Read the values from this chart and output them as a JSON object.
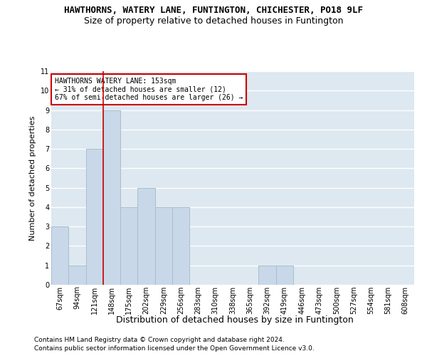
{
  "title1": "HAWTHORNS, WATERY LANE, FUNTINGTON, CHICHESTER, PO18 9LF",
  "title2": "Size of property relative to detached houses in Funtington",
  "xlabel": "Distribution of detached houses by size in Funtington",
  "ylabel": "Number of detached properties",
  "categories": [
    "67sqm",
    "94sqm",
    "121sqm",
    "148sqm",
    "175sqm",
    "202sqm",
    "229sqm",
    "256sqm",
    "283sqm",
    "310sqm",
    "338sqm",
    "365sqm",
    "392sqm",
    "419sqm",
    "446sqm",
    "473sqm",
    "500sqm",
    "527sqm",
    "554sqm",
    "581sqm",
    "608sqm"
  ],
  "values": [
    3,
    1,
    7,
    9,
    4,
    5,
    4,
    4,
    0,
    0,
    0,
    0,
    1,
    1,
    0,
    0,
    0,
    0,
    0,
    0,
    0
  ],
  "bar_color": "#c8d8e8",
  "bar_edgecolor": "#aabccc",
  "reference_line_index": 3,
  "reference_line_color": "#cc0000",
  "ylim": [
    0,
    11
  ],
  "yticks": [
    0,
    1,
    2,
    3,
    4,
    5,
    6,
    7,
    8,
    9,
    10,
    11
  ],
  "annotation_text": "HAWTHORNS WATERY LANE: 153sqm\n← 31% of detached houses are smaller (12)\n67% of semi-detached houses are larger (26) →",
  "annotation_box_color": "#ffffff",
  "annotation_box_edgecolor": "#cc0000",
  "footnote1": "Contains HM Land Registry data © Crown copyright and database right 2024.",
  "footnote2": "Contains public sector information licensed under the Open Government Licence v3.0.",
  "background_color": "#dde8f0",
  "grid_color": "#ffffff",
  "title1_fontsize": 9,
  "title2_fontsize": 9,
  "xlabel_fontsize": 9,
  "ylabel_fontsize": 8,
  "tick_fontsize": 7,
  "annotation_fontsize": 7,
  "footnote_fontsize": 6.5
}
